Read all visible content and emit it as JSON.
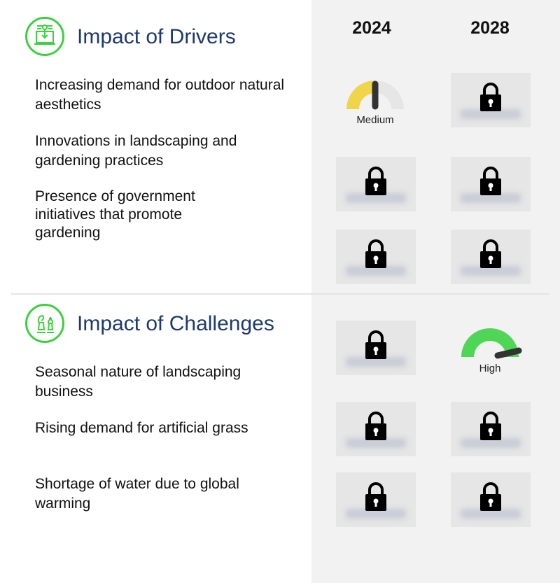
{
  "columns": [
    "2024",
    "2028"
  ],
  "drivers": {
    "title": "Impact of Drivers",
    "icon": "laptop-circuit-icon",
    "items": [
      "Increasing demand for outdoor natural aesthetics",
      "Innovations in landscaping and gardening practices",
      "Presence of government initiatives that promote gardening"
    ]
  },
  "challenges": {
    "title": "Impact of Challenges",
    "icon": "chess-pieces-icon",
    "items": [
      "Seasonal nature of landscaping business",
      "Rising demand for artificial grass",
      "Shortage of water due to global warming"
    ]
  },
  "gauges": {
    "driver1_2024": {
      "label": "Medium",
      "level": 0.5,
      "color": "#f0d44a"
    },
    "challenge1_2028": {
      "label": "High",
      "level": 0.95,
      "color": "#4fd656"
    }
  },
  "colors": {
    "accent": "#3fcf3f",
    "title": "#1e3a6b",
    "panel": "#f2f2f2"
  }
}
